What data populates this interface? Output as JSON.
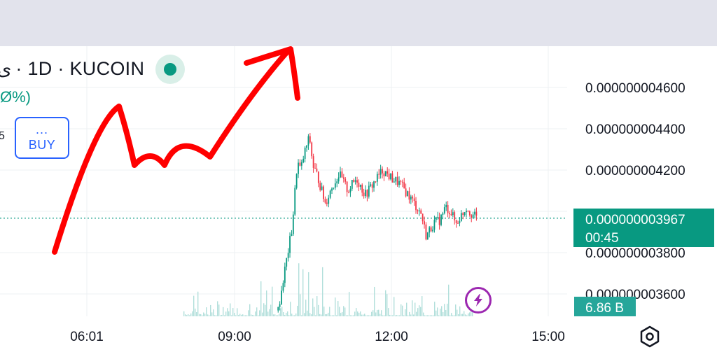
{
  "header": {
    "symbol_fragment": "ى",
    "symbol_text": "· 1D · KUCOIN",
    "change_fragment": "Ø%)",
    "price_fragment": "5",
    "buy_dots": "...",
    "buy_label": "BUY",
    "market_status_icon": "market-open-dot",
    "status_color": "#089981"
  },
  "toolbar": {
    "bolt_icon": "lightning-bolt-icon",
    "settings_icon": "hexagon-settings-icon"
  },
  "chart_data": {
    "type": "candlestick",
    "title": "",
    "xlabel": "",
    "ylabel": "",
    "x_ticks": [
      "06:01",
      "09:00",
      "12:00",
      "15:00"
    ],
    "y_ticks": [
      "0.000000004600",
      "0.000000004400",
      "0.000000004200",
      "0.000000003800",
      "0.000000003600"
    ],
    "ylim": [
      3.52,
      4.72
    ],
    "y_unit_multiplier": 1e-09,
    "grid": true,
    "last_price_label": "0.000000003967",
    "countdown_label": "00:45",
    "last_price_value": 3.967,
    "volume_label": "6.86 B",
    "price_color_up": "#089981",
    "price_color_down": "#f23645",
    "volume_color": "#b2dfdb",
    "annotation_color": "#ff0000",
    "price_path": [
      {
        "t": "09:50",
        "p": 3.52
      },
      {
        "t": "09:57",
        "p": 3.7
      },
      {
        "t": "10:02",
        "p": 3.82
      },
      {
        "t": "10:06",
        "p": 3.92
      },
      {
        "t": "10:09",
        "p": 4.08
      },
      {
        "t": "10:12",
        "p": 4.24
      },
      {
        "t": "10:16",
        "p": 4.2
      },
      {
        "t": "10:20",
        "p": 4.28
      },
      {
        "t": "10:26",
        "p": 4.36
      },
      {
        "t": "10:30",
        "p": 4.22
      },
      {
        "t": "10:36",
        "p": 4.16
      },
      {
        "t": "10:44",
        "p": 4.04
      },
      {
        "t": "10:52",
        "p": 4.12
      },
      {
        "t": "11:00",
        "p": 4.18
      },
      {
        "t": "11:10",
        "p": 4.1
      },
      {
        "t": "11:20",
        "p": 4.16
      },
      {
        "t": "11:30",
        "p": 4.08
      },
      {
        "t": "11:40",
        "p": 4.14
      },
      {
        "t": "11:50",
        "p": 4.2
      },
      {
        "t": "12:00",
        "p": 4.16
      },
      {
        "t": "12:08",
        "p": 4.14
      },
      {
        "t": "12:16",
        "p": 4.1
      },
      {
        "t": "12:26",
        "p": 4.04
      },
      {
        "t": "12:34",
        "p": 3.99
      },
      {
        "t": "12:40",
        "p": 3.88
      },
      {
        "t": "12:48",
        "p": 3.94
      },
      {
        "t": "12:56",
        "p": 3.96
      },
      {
        "t": "13:02",
        "p": 4.02
      },
      {
        "t": "13:08",
        "p": 4.0
      },
      {
        "t": "13:14",
        "p": 3.94
      },
      {
        "t": "13:20",
        "p": 3.98
      },
      {
        "t": "13:26",
        "p": 4.02
      },
      {
        "t": "13:32",
        "p": 3.99
      },
      {
        "t": "13:38",
        "p": 3.967
      }
    ]
  }
}
